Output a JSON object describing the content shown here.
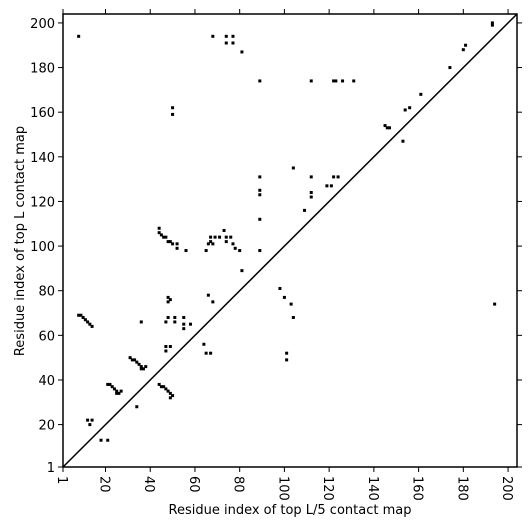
{
  "chart_data": {
    "type": "scatter",
    "xlabel": "Residue index of top L/5 contact map",
    "ylabel": "Residue index of top L contact map",
    "xlim": [
      1,
      204
    ],
    "ylim": [
      1,
      204
    ],
    "xticks": [
      1,
      20,
      40,
      60,
      80,
      100,
      120,
      140,
      160,
      180,
      200
    ],
    "yticks": [
      1,
      20,
      40,
      60,
      80,
      100,
      120,
      140,
      160,
      180,
      200
    ],
    "color": "#000000",
    "diagonal": true,
    "x": [
      8,
      9,
      10,
      11,
      12,
      13,
      14,
      13,
      14,
      12,
      18,
      21,
      21,
      22,
      23,
      24,
      25,
      25,
      26,
      27,
      31,
      32,
      33,
      34,
      35,
      36,
      37,
      38,
      36,
      34,
      36,
      44,
      45,
      46,
      47,
      48,
      49,
      50,
      49,
      47,
      47,
      49,
      48,
      47,
      48,
      48,
      49,
      51,
      51,
      55,
      55,
      55,
      58,
      44,
      44,
      45,
      46,
      47,
      48,
      49,
      50,
      52,
      52,
      56,
      50,
      50,
      66,
      67,
      68,
      67,
      69,
      71,
      73,
      74,
      74,
      76,
      77,
      78,
      80,
      65,
      66,
      68,
      67,
      64,
      65,
      81,
      8,
      68,
      74,
      77,
      77,
      74,
      81,
      89,
      89,
      89,
      89,
      89,
      89,
      104,
      109,
      112,
      112,
      112,
      112,
      119,
      121,
      122,
      123,
      122,
      124,
      126,
      131,
      145,
      146,
      147,
      153,
      154,
      156,
      161,
      174,
      180,
      181,
      193,
      193,
      194,
      98,
      100,
      103,
      101,
      101,
      104
    ],
    "y": [
      69,
      69,
      68,
      67,
      66,
      65,
      64,
      20,
      22,
      22,
      13,
      13,
      38,
      38,
      37,
      36,
      35,
      34,
      34,
      35,
      50,
      49,
      49,
      48,
      47,
      46,
      45,
      46,
      45,
      28,
      66,
      38,
      37,
      37,
      36,
      35,
      34,
      33,
      32,
      55,
      53,
      55,
      68,
      66,
      77,
      75,
      76,
      68,
      66,
      65,
      63,
      68,
      65,
      108,
      106,
      105,
      104,
      104,
      102,
      102,
      101,
      101,
      99,
      98,
      162,
      159,
      101,
      102,
      101,
      104,
      104,
      104,
      107,
      104,
      102,
      104,
      101,
      99,
      98,
      98,
      78,
      75,
      52,
      56,
      52,
      89,
      194,
      194,
      194,
      194,
      191,
      191,
      187,
      174,
      131,
      125,
      123,
      112,
      98,
      135,
      116,
      131,
      124,
      122,
      174,
      127,
      127,
      174,
      174,
      131,
      131,
      174,
      174,
      154,
      153,
      153,
      147,
      161,
      162,
      168,
      180,
      188,
      190,
      200,
      199,
      74,
      81,
      77,
      74,
      52,
      49,
      68
    ]
  }
}
